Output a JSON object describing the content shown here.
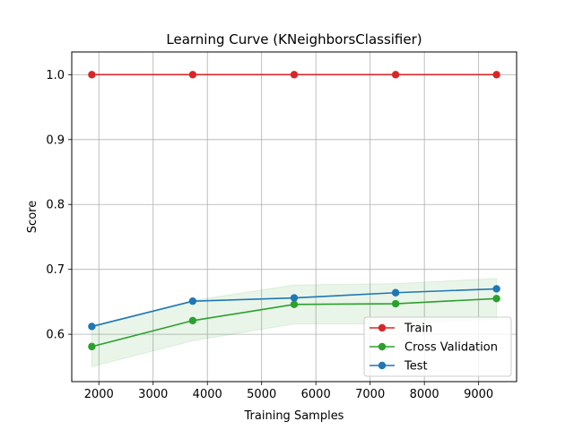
{
  "chart_data": {
    "type": "line",
    "title": "Learning Curve (KNeighborsClassifier)",
    "xlabel": "Training Samples",
    "ylabel": "Score",
    "xlim": [
      1500,
      9700
    ],
    "ylim": [
      0.527,
      1.035
    ],
    "x_ticks": [
      2000,
      3000,
      4000,
      5000,
      6000,
      7000,
      8000,
      9000
    ],
    "y_ticks": [
      0.6,
      0.7,
      0.8,
      0.9,
      1.0
    ],
    "x_tick_labels": [
      "2000",
      "3000",
      "4000",
      "5000",
      "6000",
      "7000",
      "8000",
      "9000"
    ],
    "y_tick_labels": [
      "0.6",
      "0.7",
      "0.8",
      "0.9",
      "1.0"
    ],
    "grid": true,
    "legend_position": "lower-right",
    "x": [
      1870,
      3730,
      5600,
      7470,
      9330
    ],
    "series": [
      {
        "name": "Train",
        "color": "#d62728",
        "values": [
          1.0,
          1.0,
          1.0,
          1.0,
          1.0
        ]
      },
      {
        "name": "Cross Validation",
        "color": "#2ca02c",
        "values": [
          0.581,
          0.621,
          0.646,
          0.647,
          0.655
        ],
        "band": {
          "lower": [
            0.55,
            0.59,
            0.616,
            0.616,
            0.623
          ],
          "upper": [
            0.611,
            0.652,
            0.676,
            0.678,
            0.686
          ]
        }
      },
      {
        "name": "Test",
        "color": "#1f77b4",
        "values": [
          0.612,
          0.651,
          0.656,
          0.664,
          0.67
        ]
      }
    ]
  }
}
